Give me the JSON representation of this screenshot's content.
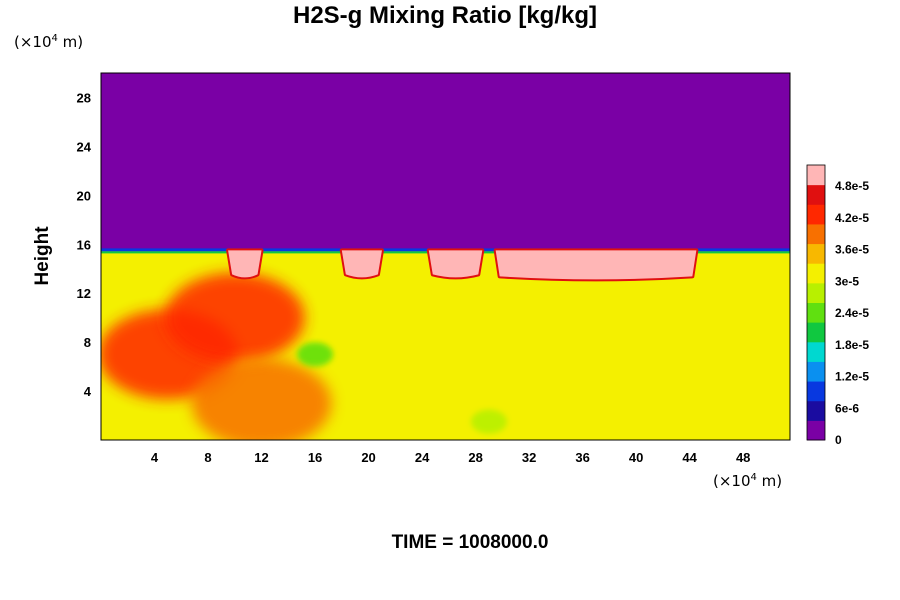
{
  "chart_data": {
    "type": "heatmap",
    "title": "H2S-g Mixing Ratio [kg/kg]",
    "ylabel": "Height",
    "x_unit": {
      "prefix": "(×10",
      "exp": "4",
      "suffix": " m)"
    },
    "y_unit": {
      "prefix": "(×10",
      "exp": "4",
      "suffix": " m)"
    },
    "xlim": [
      0,
      51.5
    ],
    "ylim": [
      0,
      30
    ],
    "x_ticks": [
      "4",
      "8",
      "12",
      "16",
      "20",
      "24",
      "28",
      "32",
      "36",
      "40",
      "44",
      "48"
    ],
    "y_ticks": [
      "4",
      "8",
      "12",
      "16",
      "20",
      "24",
      "28"
    ],
    "colorbar": {
      "min": 0,
      "max": 5.2e-05,
      "tick_labels": [
        "0",
        "6e-6",
        "1.2e-5",
        "1.8e-5",
        "2.4e-5",
        "3e-5",
        "3.6e-5",
        "4.2e-5",
        "4.8e-5"
      ],
      "tick_values": [
        0,
        6e-06,
        1.2e-05,
        1.8e-05,
        2.4e-05,
        3e-05,
        3.6e-05,
        4.2e-05,
        4.8e-05
      ],
      "colors": [
        "#7a00a5",
        "#1a0ca0",
        "#0838e0",
        "#0a90f0",
        "#00d8d0",
        "#10c840",
        "#60e010",
        "#b8f000",
        "#f4f000",
        "#f8b800",
        "#f87000",
        "#ff2800",
        "#e01010",
        "#ffb6b6"
      ]
    },
    "fields": {
      "upper_layer_value": 0,
      "upper_layer_above_height": 15.5,
      "background_value": 3.3e-05,
      "high_value_regions": [
        {
          "x_range": [
            9.5,
            12
          ],
          "y_top": 15.5,
          "value": 5.2e-05
        },
        {
          "x_range": [
            18,
            21
          ],
          "y_top": 15.5,
          "value": 5.2e-05
        },
        {
          "x_range": [
            24.5,
            28.5
          ],
          "y_top": 15.5,
          "value": 5.2e-05
        },
        {
          "x_range": [
            29.5,
            44.5
          ],
          "y_top": 15.5,
          "value": 5.2e-05
        }
      ],
      "orange_patches": [
        {
          "x": 5,
          "y": 7,
          "value": 4.2e-05
        },
        {
          "x": 10,
          "y": 10,
          "value": 4.4e-05
        },
        {
          "x": 12,
          "y": 3,
          "value": 3.9e-05
        }
      ],
      "green_patches": [
        {
          "x": 16,
          "y": 7,
          "value": 2.4e-05
        },
        {
          "x": 29,
          "y": 1.5,
          "value": 2.6e-05
        }
      ]
    },
    "time_label": "TIME = 1008000.0"
  }
}
